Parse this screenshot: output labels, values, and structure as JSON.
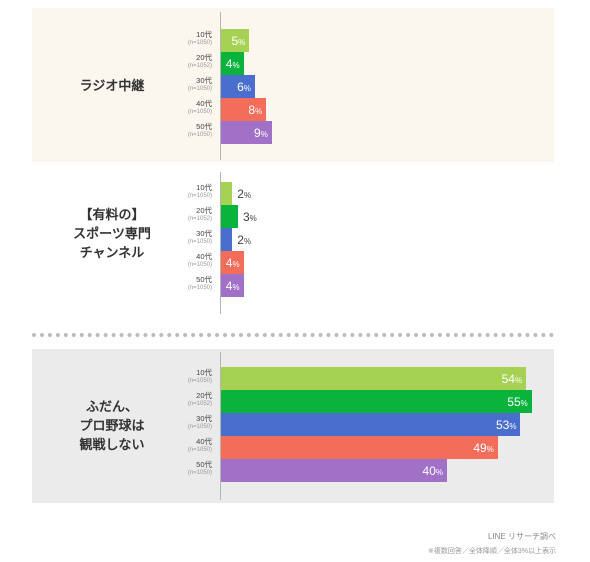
{
  "chart_data": {
    "type": "bar",
    "orientation": "horizontal",
    "value_unit": "%",
    "xlim": [
      0,
      100
    ],
    "groups": [
      {
        "label": "ラジオ中継",
        "values": [
          5,
          4,
          6,
          8,
          9
        ]
      },
      {
        "label": "【有料の】\nスポーツ専門\nチャンネル",
        "values": [
          2,
          3,
          2,
          4,
          4
        ]
      },
      {
        "label": "ふだん、\nプロ野球は\n観戦しない",
        "values": [
          54,
          55,
          53,
          49,
          40
        ]
      }
    ],
    "series": [
      {
        "name": "10代",
        "sample": "(n=1050)",
        "color": "#a6d254"
      },
      {
        "name": "20代",
        "sample": "(n=1052)",
        "color": "#0ab43c"
      },
      {
        "name": "30代",
        "sample": "(n=1050)",
        "color": "#4a6ecd"
      },
      {
        "name": "40代",
        "sample": "(n=1050)",
        "color": "#f46c5a"
      },
      {
        "name": "50代",
        "sample": "(n=1050)",
        "color": "#a071c7"
      }
    ],
    "group_backgrounds": [
      "#fbf6ee",
      "#ffffff",
      "#ebebeb"
    ]
  },
  "footer": {
    "source": "LINE リサーチ調べ",
    "note": "※複数回答／全体降順／全体3%以上表示"
  }
}
